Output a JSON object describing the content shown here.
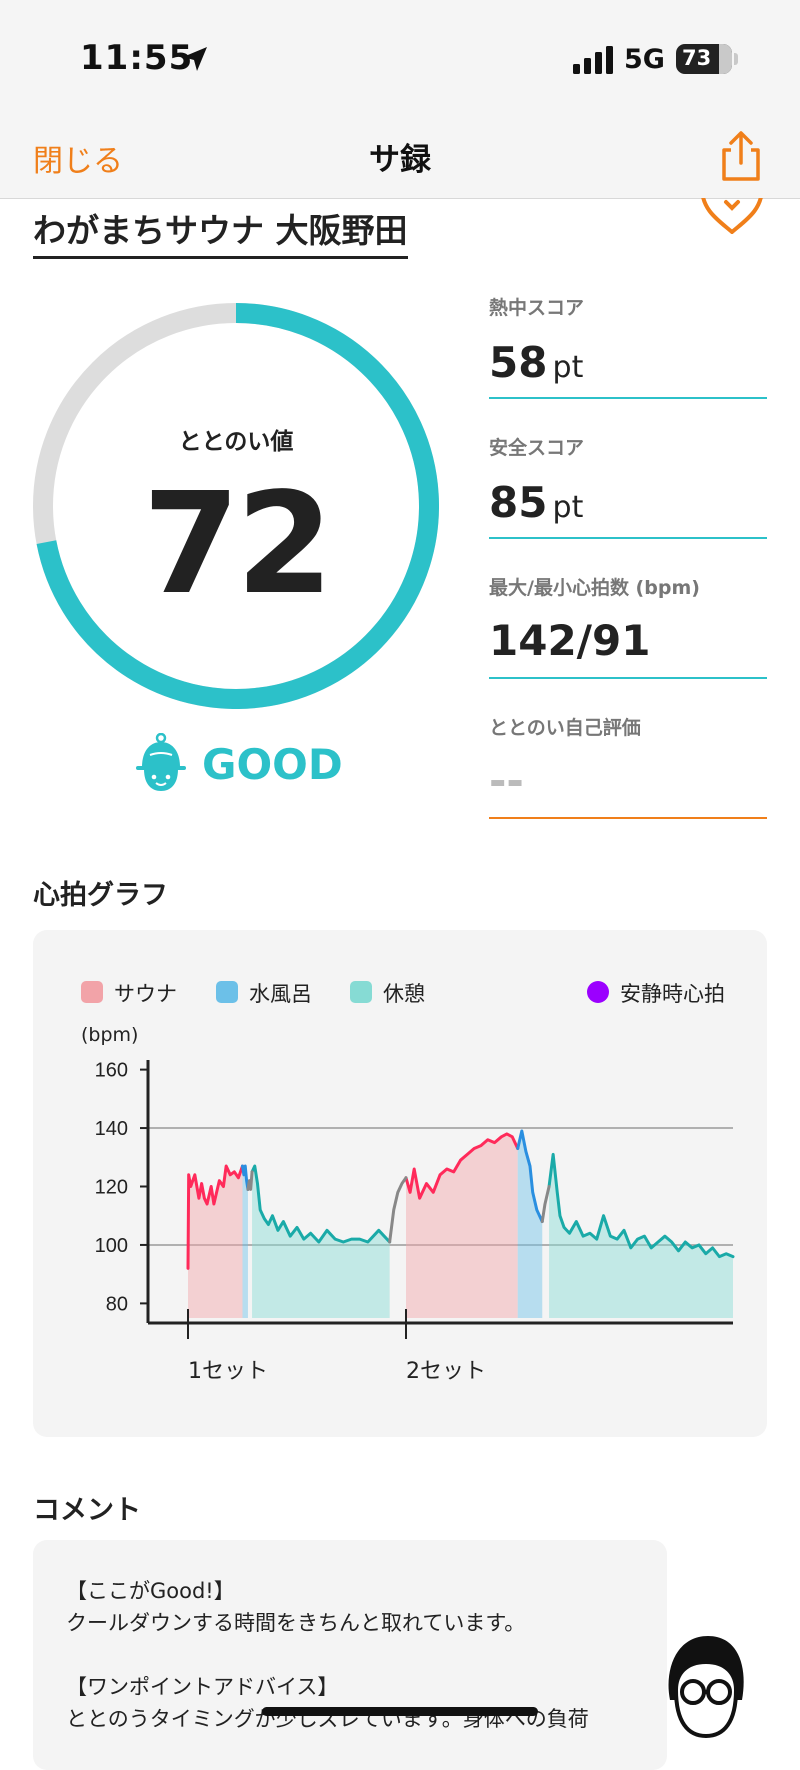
{
  "status_bar": {
    "time": "11:55",
    "network": "5G",
    "battery": "73"
  },
  "nav": {
    "close_label": "閉じる",
    "title": "サ録"
  },
  "facility_name": "わがまちサウナ 大阪野田",
  "gauge": {
    "label": "ととのい値",
    "value": "72",
    "progress": 0.72,
    "rating": "GOOD"
  },
  "stats": [
    {
      "label": "熱中スコア",
      "value": "58",
      "unit": "pt"
    },
    {
      "label": "安全スコア",
      "value": "85",
      "unit": "pt"
    },
    {
      "label": "最大/最小心拍数 (bpm)",
      "value": "142/91",
      "unit": ""
    },
    {
      "label": "ととのい自己評価",
      "value": "--",
      "unit": ""
    }
  ],
  "heart_graph": {
    "title": "心拍グラフ"
  },
  "chart_data": {
    "type": "line",
    "title": "",
    "ylabel": "(bpm)",
    "xlabel": "",
    "ylim": [
      75,
      165
    ],
    "yticks": [
      80,
      100,
      120,
      140,
      160
    ],
    "x_markers": [
      "1セット",
      "2セット"
    ],
    "reference_line": 140,
    "legend": [
      {
        "label": "サウナ",
        "color": "#f2a3a8"
      },
      {
        "label": "水風呂",
        "color": "#6cc0e8"
      },
      {
        "label": "休憩",
        "color": "#86dbd4"
      },
      {
        "label": "安静時心拍",
        "color": "#9b00ff"
      }
    ],
    "series": [
      {
        "name": "サウナ",
        "color": "#ff2a5a",
        "x": [
          0,
          0.5,
          2,
          5,
          8,
          10,
          12,
          14,
          17,
          19,
          21,
          23,
          26,
          28,
          31,
          34,
          37,
          40
        ],
        "y": [
          92,
          124,
          120,
          124,
          116,
          121,
          116,
          114,
          120,
          114,
          118,
          122,
          120,
          127,
          124,
          125,
          123,
          127
        ]
      },
      {
        "name": "水風呂",
        "color": "#2a8fe0",
        "x": [
          40,
          41,
          42,
          43,
          44
        ],
        "y": [
          127,
          124,
          127,
          122,
          119
        ]
      },
      {
        "name": "休憩",
        "color": "#1aaaa8",
        "x": [
          47,
          49,
          51,
          53,
          56,
          59,
          62,
          66,
          70,
          75,
          80,
          85,
          90,
          96,
          102,
          108,
          114,
          120,
          126,
          132,
          140,
          148
        ],
        "y": [
          125,
          127,
          121,
          112,
          109,
          107,
          110,
          105,
          108,
          103,
          106,
          102,
          104,
          101,
          105,
          102,
          101,
          102,
          102,
          101,
          105,
          101
        ]
      },
      {
        "name": "サウナ",
        "color": "#ff2a5a",
        "x": [
          160,
          163,
          166,
          170,
          175,
          180,
          185,
          190,
          195,
          200,
          205,
          210,
          215,
          220,
          225,
          230,
          234,
          238,
          242
        ],
        "y": [
          123,
          118,
          126,
          116,
          121,
          118,
          124,
          126,
          125,
          129,
          131,
          133,
          134,
          136,
          135,
          137,
          138,
          137,
          133
        ]
      },
      {
        "name": "水風呂",
        "color": "#2a8fe0",
        "x": [
          242,
          245,
          248,
          251,
          253,
          256,
          258,
          260
        ],
        "y": [
          133,
          139,
          132,
          127,
          118,
          112,
          110,
          108
        ]
      },
      {
        "name": "休憩",
        "color": "#1aaaa8",
        "x": [
          265,
          268,
          271,
          273,
          276,
          280,
          285,
          290,
          295,
          300,
          305,
          310,
          315,
          320,
          325,
          330,
          335,
          340,
          345,
          350,
          355,
          360,
          365,
          370,
          375,
          380,
          385,
          390,
          395,
          400
        ],
        "y": [
          120,
          131,
          118,
          110,
          106,
          104,
          108,
          103,
          104,
          102,
          110,
          103,
          102,
          105,
          99,
          102,
          103,
          99,
          101,
          103,
          101,
          98,
          101,
          99,
          100,
          97,
          99,
          96,
          97,
          96
        ]
      },
      {
        "name": "",
        "color": "#888888",
        "x": [
          44,
          45,
          46,
          47
        ],
        "y": [
          119,
          122,
          119,
          125
        ]
      },
      {
        "name": "",
        "color": "#888888",
        "x": [
          148,
          151,
          154,
          157,
          160
        ],
        "y": [
          101,
          112,
          118,
          121,
          123
        ]
      },
      {
        "name": "",
        "color": "#888888",
        "x": [
          260,
          262,
          265
        ],
        "y": [
          108,
          114,
          120
        ]
      }
    ],
    "bands": [
      {
        "kind": "サウナ",
        "x0": 0,
        "x1": 40,
        "color": "#f2a3a8"
      },
      {
        "kind": "水風呂",
        "x0": 41,
        "x1": 44,
        "color": "#6cc0e8"
      },
      {
        "kind": "休憩",
        "x0": 47,
        "x1": 148,
        "color": "#86dbd4"
      },
      {
        "kind": "サウナ",
        "x0": 160,
        "x1": 242,
        "color": "#f2a3a8"
      },
      {
        "kind": "水風呂",
        "x0": 244,
        "x1": 258,
        "color": "#6cc0e8"
      },
      {
        "kind": "休憩",
        "x0": 265,
        "x1": 400,
        "color": "#86dbd4"
      }
    ],
    "x_range": [
      -20,
      400
    ],
    "marker_x": [
      0,
      160
    ]
  },
  "comment": {
    "title": "コメント",
    "lines": [
      "【ここがGood!】",
      "クールダウンする時間をきちんと取れています。",
      "",
      "【ワンポイントアドバイス】",
      "ととのうタイミングが少しズレています。身体への負荷"
    ]
  }
}
